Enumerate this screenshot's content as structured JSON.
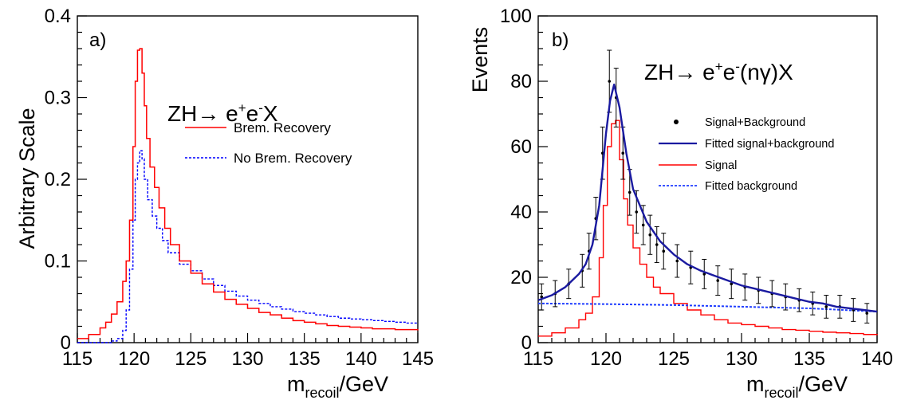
{
  "colors": {
    "signal": "#ff0000",
    "brem": "#ff0000",
    "nobrem": "#0000ff",
    "fit_total": "#1a1aa0",
    "fit_bg": "#1f3dff",
    "data_points": "#000000"
  },
  "chart_data": [
    {
      "type": "line",
      "panel_label": "a)",
      "annotation": {
        "main": "ZH→ e",
        "p1": "+",
        "m": "e",
        "p2": "-",
        "tail": "X"
      },
      "xlabel": {
        "main": "m",
        "sub": "recoil",
        "tail": "/GeV"
      },
      "ylabel": "Arbitrary Scale",
      "xlim": [
        115,
        145
      ],
      "ylim": [
        0,
        0.4
      ],
      "xticks": [
        "115",
        "120",
        "125",
        "130",
        "135",
        "140",
        "145"
      ],
      "yticks": [
        "0",
        "0.1",
        "0.2",
        "0.3",
        "0.4"
      ],
      "legend_position": "top-right",
      "series": [
        {
          "name": "Brem. Recovery",
          "style": "step-solid",
          "x": [
            115,
            116,
            117,
            117.5,
            118,
            118.5,
            119,
            119.3,
            119.6,
            119.9,
            120.1,
            120.3,
            120.5,
            120.7,
            120.9,
            121.1,
            121.4,
            121.8,
            122.2,
            122.7,
            123.2,
            124,
            125,
            126,
            127,
            128,
            129,
            130,
            131,
            132,
            133,
            134,
            135,
            136,
            137,
            138,
            139,
            140,
            141,
            142,
            143,
            144,
            145
          ],
          "y": [
            0.005,
            0.01,
            0.018,
            0.025,
            0.035,
            0.05,
            0.075,
            0.1,
            0.15,
            0.24,
            0.32,
            0.358,
            0.36,
            0.33,
            0.29,
            0.25,
            0.215,
            0.19,
            0.165,
            0.14,
            0.12,
            0.1,
            0.085,
            0.072,
            0.062,
            0.053,
            0.047,
            0.042,
            0.037,
            0.034,
            0.03,
            0.027,
            0.025,
            0.023,
            0.021,
            0.02,
            0.019,
            0.018,
            0.017,
            0.017,
            0.016,
            0.016,
            0.015
          ]
        },
        {
          "name": "No Brem. Recovery",
          "style": "step-dashed",
          "x": [
            115,
            117,
            118,
            118.5,
            119,
            119.3,
            119.6,
            119.9,
            120.1,
            120.3,
            120.5,
            120.7,
            120.9,
            121.2,
            121.6,
            122,
            122.5,
            123,
            124,
            125,
            126,
            127,
            128,
            129,
            130,
            131,
            132,
            133,
            134,
            135,
            136,
            137,
            138,
            139,
            140,
            141,
            142,
            143,
            144,
            145
          ],
          "y": [
            0,
            0,
            0.002,
            0.005,
            0.015,
            0.04,
            0.09,
            0.15,
            0.2,
            0.22,
            0.235,
            0.225,
            0.2,
            0.175,
            0.155,
            0.14,
            0.125,
            0.11,
            0.096,
            0.088,
            0.078,
            0.07,
            0.063,
            0.057,
            0.052,
            0.048,
            0.044,
            0.041,
            0.038,
            0.036,
            0.034,
            0.032,
            0.03,
            0.029,
            0.028,
            0.027,
            0.026,
            0.025,
            0.024,
            0.023
          ]
        }
      ]
    },
    {
      "type": "line",
      "panel_label": "b)",
      "annotation": {
        "main": "ZH→ e",
        "p1": "+",
        "m": "e",
        "p2": "-",
        "tail": "(nγ)X"
      },
      "xlabel": {
        "main": "m",
        "sub": "recoil",
        "tail": "/GeV"
      },
      "ylabel": "Events",
      "xlim": [
        115,
        140
      ],
      "ylim": [
        0,
        100
      ],
      "xticks": [
        "115",
        "120",
        "125",
        "130",
        "135",
        "140"
      ],
      "yticks": [
        "0",
        "20",
        "40",
        "60",
        "80",
        "100"
      ],
      "legend_position": "top-right",
      "series": [
        {
          "name": "Signal+Background",
          "style": "points-errorbars",
          "x": [
            115.25,
            116.25,
            117.25,
            118.25,
            118.75,
            119.25,
            119.75,
            120.25,
            120.75,
            121.25,
            121.75,
            122.25,
            122.75,
            123.25,
            123.75,
            124.25,
            125.25,
            126.25,
            127.25,
            128.25,
            129.25,
            130.25,
            131.25,
            132.25,
            133.25,
            134.25,
            135.25,
            136.25,
            137.25,
            138.25,
            139.25
          ],
          "y": [
            14,
            15,
            18,
            22,
            28,
            38,
            58,
            80,
            75,
            58,
            46,
            40,
            36,
            33,
            30,
            28,
            25,
            23,
            21,
            19,
            18,
            17,
            16,
            15,
            14,
            13,
            12,
            11,
            11,
            10,
            9
          ],
          "err": [
            4,
            4,
            4.5,
            5,
            5.5,
            6.5,
            8,
            9.5,
            9,
            8,
            7,
            6.5,
            6,
            6,
            5.5,
            5.5,
            5,
            5,
            4.5,
            4.5,
            4.5,
            4,
            4,
            4,
            4,
            3.5,
            3.5,
            3.5,
            3.5,
            3.5,
            3
          ]
        },
        {
          "name": "Fitted signal+background",
          "style": "smooth-solid",
          "x": [
            115,
            116,
            117,
            118,
            118.5,
            119,
            119.5,
            120,
            120.3,
            120.6,
            121,
            121.5,
            122,
            123,
            124,
            125,
            126,
            127,
            128,
            129,
            130,
            131,
            132,
            133,
            134,
            135,
            136,
            137,
            138,
            139,
            140
          ],
          "y": [
            13,
            14.5,
            17,
            21,
            24,
            30,
            42,
            64,
            74,
            79,
            72,
            58,
            47,
            37,
            31,
            27,
            24,
            22,
            20.5,
            19,
            17.5,
            16.5,
            15.5,
            14.5,
            13.5,
            12.5,
            12,
            11,
            10.5,
            10,
            9.5
          ]
        },
        {
          "name": "Signal",
          "style": "step-solid",
          "x": [
            115,
            116,
            117,
            118,
            118.5,
            119,
            119.5,
            119.8,
            120.1,
            120.4,
            120.7,
            121,
            121.3,
            121.6,
            122,
            122.5,
            123,
            123.5,
            124,
            125,
            126,
            127,
            128,
            129,
            130,
            131,
            132,
            133,
            134,
            135,
            136,
            137,
            138,
            139,
            140
          ],
          "y": [
            2,
            3,
            4.5,
            7,
            9,
            14,
            26,
            42,
            60,
            67,
            68,
            56,
            44,
            36,
            29,
            24,
            20,
            17,
            15,
            12,
            10,
            8.5,
            7,
            6,
            5.5,
            5,
            4.5,
            4,
            3.8,
            3.5,
            3.2,
            3,
            2.8,
            2.5,
            2.3
          ]
        },
        {
          "name": "Fitted background",
          "style": "dashed",
          "x": [
            115,
            120,
            125,
            130,
            135,
            140
          ],
          "y": [
            12,
            11.8,
            11.5,
            11,
            10.5,
            9.5
          ]
        }
      ]
    }
  ]
}
